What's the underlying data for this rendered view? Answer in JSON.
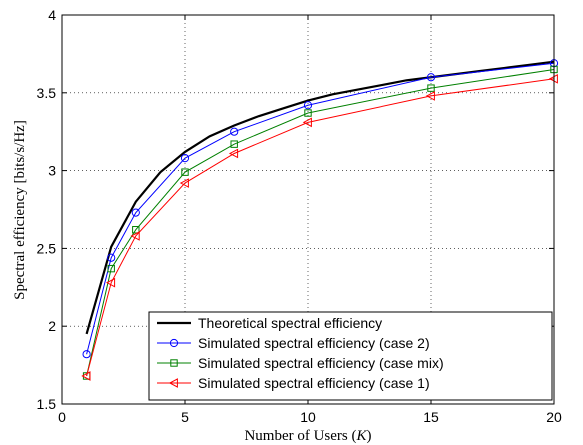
{
  "chart_data": {
    "type": "line",
    "xlabel": "Number of Users (K)",
    "xlabel_main": "Number of Users (",
    "xlabel_var": "K",
    "xlabel_end": ")",
    "ylabel": "Spectral efficiency [bits/s/Hz]",
    "xlim": [
      0,
      20
    ],
    "ylim": [
      1.5,
      4
    ],
    "xticks": [
      "0",
      "5",
      "10",
      "15",
      "20"
    ],
    "yticks": [
      "1.5",
      "2",
      "2.5",
      "3",
      "3.5",
      "4"
    ],
    "grid": true,
    "legend_position": "bottom-right",
    "series": [
      {
        "name": "Theoretical spectral efficiency",
        "color": "#000000",
        "marker": "none",
        "x": [
          1,
          2,
          3,
          4,
          5,
          6,
          7,
          8,
          9,
          10,
          11,
          12,
          13,
          14,
          15,
          16,
          17,
          18,
          19,
          20
        ],
        "y": [
          1.95,
          2.51,
          2.8,
          2.99,
          3.12,
          3.22,
          3.29,
          3.35,
          3.4,
          3.45,
          3.49,
          3.52,
          3.55,
          3.58,
          3.6,
          3.62,
          3.64,
          3.66,
          3.68,
          3.7
        ]
      },
      {
        "name": "Simulated spectral efficiency (case 2)",
        "color": "#0000ff",
        "marker": "circle",
        "x": [
          1,
          2,
          3,
          5,
          7,
          10,
          15,
          20
        ],
        "y": [
          1.82,
          2.44,
          2.73,
          3.08,
          3.25,
          3.42,
          3.6,
          3.69
        ]
      },
      {
        "name": "Simulated spectral efficiency (case mix)",
        "color": "#008000",
        "marker": "square",
        "x": [
          1,
          2,
          3,
          5,
          7,
          10,
          15,
          20
        ],
        "y": [
          1.68,
          2.37,
          2.62,
          2.99,
          3.17,
          3.37,
          3.53,
          3.65
        ]
      },
      {
        "name": "Simulated spectral efficiency (case 1)",
        "color": "#ff0000",
        "marker": "triangle-left",
        "x": [
          1,
          2,
          3,
          5,
          7,
          10,
          15,
          20
        ],
        "y": [
          1.68,
          2.28,
          2.58,
          2.92,
          3.11,
          3.31,
          3.48,
          3.59
        ]
      }
    ]
  }
}
